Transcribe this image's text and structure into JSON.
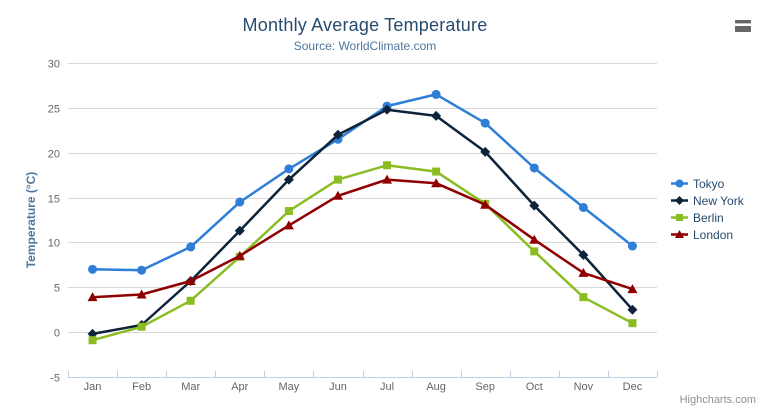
{
  "header": {
    "title": "Monthly Average Temperature",
    "subtitle": "Source: WorldClimate.com"
  },
  "credits": {
    "label": "Highcharts.com"
  },
  "colors": {
    "title": "#274b6d",
    "subtitle": "#4d759e",
    "axis_title": "#4d759e",
    "axis_labels": "#666666",
    "grid_line": "#d8d8d8",
    "x_axis_line": "#c0d0e0",
    "legend_text": "#274b6d",
    "credits_text": "#909090",
    "context_menu_icon": "#666666"
  },
  "chart_data": {
    "type": "line",
    "title": "Monthly Average Temperature",
    "subtitle": "Source: WorldClimate.com",
    "xlabel": "",
    "ylabel": "Temperature (°C)",
    "ylim": [
      -5,
      30
    ],
    "yticks": [
      -5,
      0,
      5,
      10,
      15,
      20,
      25,
      30
    ],
    "grid": true,
    "legend_position": "right",
    "categories": [
      "Jan",
      "Feb",
      "Mar",
      "Apr",
      "May",
      "Jun",
      "Jul",
      "Aug",
      "Sep",
      "Oct",
      "Nov",
      "Dec"
    ],
    "series": [
      {
        "name": "Tokyo",
        "color": "#2f7ed8",
        "marker": "circle",
        "values": [
          7.0,
          6.9,
          9.5,
          14.5,
          18.2,
          21.5,
          25.2,
          26.5,
          23.3,
          18.3,
          13.9,
          9.6
        ]
      },
      {
        "name": "New York",
        "color": "#0d233a",
        "marker": "diamond",
        "values": [
          -0.2,
          0.8,
          5.7,
          11.3,
          17.0,
          22.0,
          24.8,
          24.1,
          20.1,
          14.1,
          8.6,
          2.5
        ]
      },
      {
        "name": "Berlin",
        "color": "#8bbc21",
        "marker": "square",
        "values": [
          -0.9,
          0.6,
          3.5,
          8.4,
          13.5,
          17.0,
          18.6,
          17.9,
          14.3,
          9.0,
          3.9,
          1.0
        ]
      },
      {
        "name": "London",
        "color": "#910000",
        "marker": "triangle",
        "values": [
          3.9,
          4.2,
          5.7,
          8.5,
          11.9,
          15.2,
          17.0,
          16.6,
          14.2,
          10.3,
          6.6,
          4.8
        ]
      }
    ]
  }
}
